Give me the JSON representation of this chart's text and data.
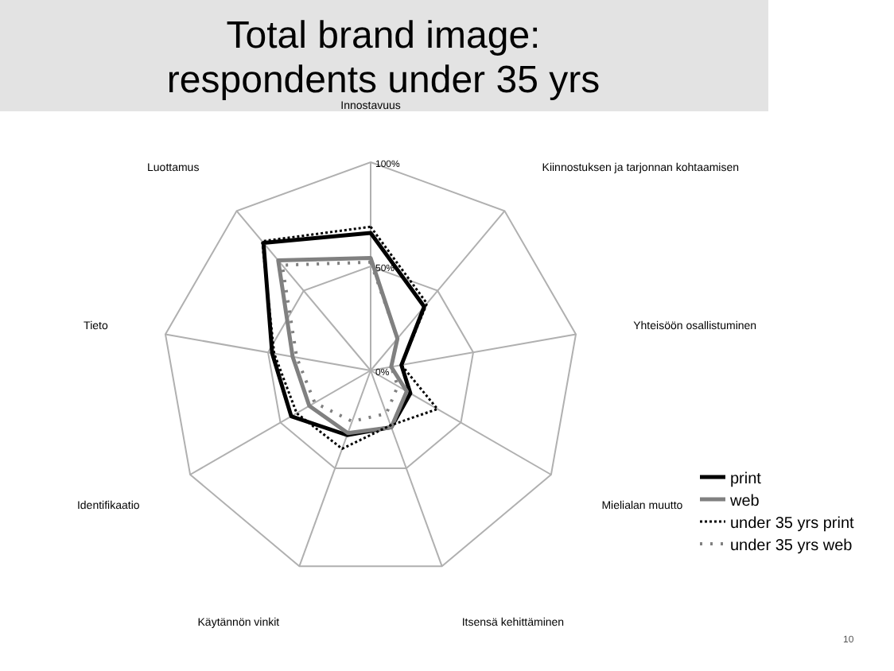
{
  "chart_data": {
    "type": "radar",
    "title": "Total brand image:\nrespondents under 35 yrs",
    "categories": [
      "Innostavuus",
      "Kiinnostuksen ja tarjonnan kohtaamisen",
      "Yhteisöön osallistuminen",
      "Mielialan muutto",
      "Itsensä kehittäminen",
      "Käytännön vinkit",
      "Identifikaatio",
      "Tieto",
      "Luottamus"
    ],
    "series": [
      {
        "name": "print",
        "color": "#000000",
        "line_style": "solid",
        "values": [
          66,
          40,
          15,
          22,
          29,
          33,
          44,
          48,
          80
        ]
      },
      {
        "name": "web",
        "color": "#808080",
        "line_style": "solid",
        "values": [
          54,
          20,
          10,
          20,
          29,
          32,
          34,
          38,
          69
        ]
      },
      {
        "name": "under 35 yrs print",
        "color": "#000000",
        "line_style": "dotted",
        "values": [
          69,
          42,
          15,
          37,
          28,
          40,
          41,
          47,
          81
        ]
      },
      {
        "name": "under 35 yrs web",
        "color": "#808080",
        "line_style": "dotted",
        "values": [
          52,
          20,
          10,
          15,
          22,
          26,
          31,
          36,
          66
        ]
      }
    ],
    "ylim": [
      0,
      100
    ],
    "yticks": [
      {
        "value": 0,
        "label": "0%"
      },
      {
        "value": 50,
        "label": "50%"
      },
      {
        "value": 100,
        "label": "100%"
      }
    ],
    "grid": true,
    "legend": "right",
    "annotations": [
      "10"
    ]
  }
}
